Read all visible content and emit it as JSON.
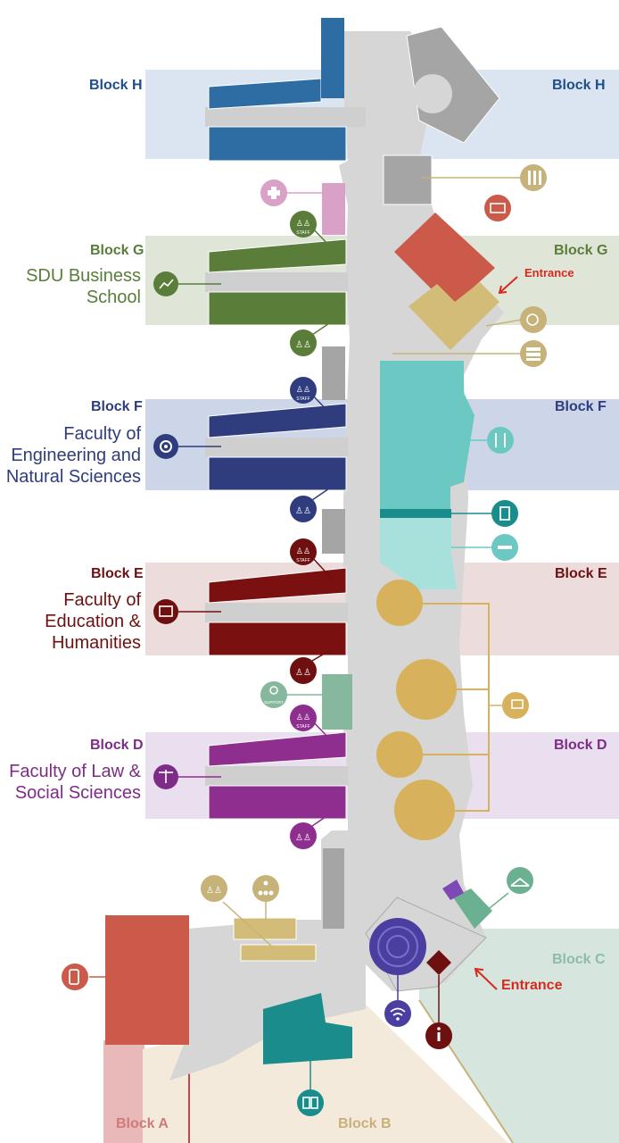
{
  "blocks": {
    "h": {
      "left": "Block H",
      "right": "Block H",
      "color": "#1f4e8c"
    },
    "g": {
      "left": "Block G",
      "right": "Block G",
      "faculty": [
        "SDU Business",
        "School"
      ],
      "color": "#5a7d3a"
    },
    "f": {
      "left": "Block F",
      "right": "Block F",
      "faculty": [
        "Faculty of",
        "Engineering and",
        "Natural Sciences"
      ],
      "color": "#2f3c7e"
    },
    "e": {
      "left": "Block E",
      "right": "Block E",
      "faculty": [
        "Faculty of",
        "Education &",
        "Humanities"
      ],
      "color": "#6e1010"
    },
    "d": {
      "left": "Block D",
      "right": "Block D",
      "faculty": [
        "Faculty of Law &",
        "Social Sciences"
      ],
      "color": "#7d2c87"
    },
    "c": {
      "label": "Block C",
      "color": "#7fae98"
    },
    "a": {
      "label": "Block A",
      "color": "#d07a7a"
    },
    "b": {
      "label": "Block B",
      "color": "#c8b07a"
    }
  },
  "entrances": {
    "north": "Entrance",
    "south": "Entrance"
  },
  "icons": {
    "staff_text": "STAFF",
    "support_text": "SUPPORT",
    "first_aid": "first-aid-cross",
    "library": "book-icon",
    "wifi": "wifi-icon",
    "info": "info-icon",
    "cafe": "cup-icon",
    "canteen": "fork-knife-icon",
    "wardrobe": "hanger-icon"
  },
  "colors": {
    "floor": "#d6d6d6",
    "wall": "#9c9c9c",
    "canteen": "#6cc8c3",
    "auditorium": "#d8b15c",
    "gold": "#c7b27a"
  }
}
